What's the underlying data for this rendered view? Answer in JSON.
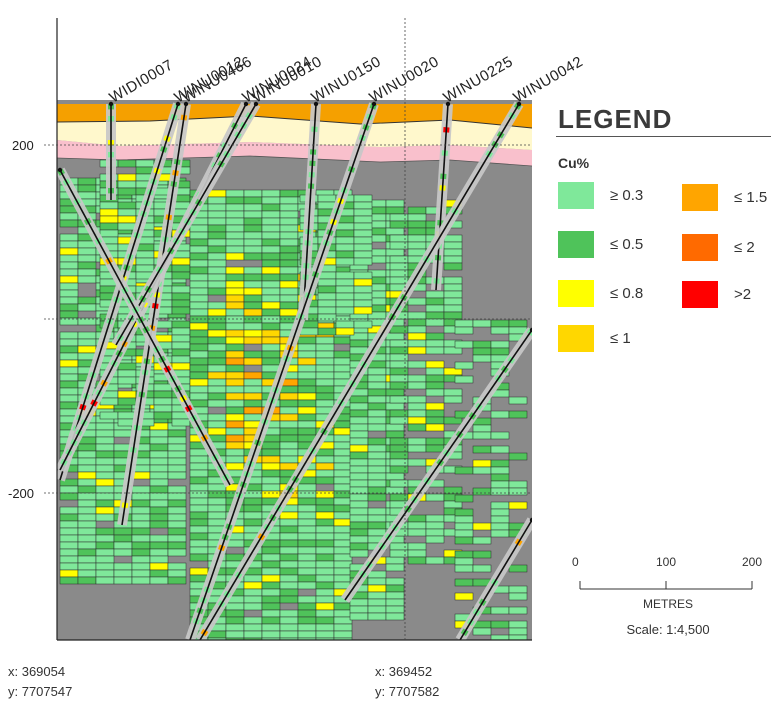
{
  "section": {
    "y_axis_labels": [
      "200",
      "-200"
    ],
    "drillholes": [
      {
        "name": "WIDI0007"
      },
      {
        "name": "WINU0012"
      },
      {
        "name": "WINU0466"
      },
      {
        "name": "WINU0024"
      },
      {
        "name": "WINU0010"
      },
      {
        "name": "WINU0150"
      },
      {
        "name": "WINU0020"
      },
      {
        "name": "WINU0225"
      },
      {
        "name": "WINU0042"
      }
    ]
  },
  "legend": {
    "title": "LEGEND",
    "subtitle": "Cu%",
    "items": [
      {
        "label": "≥ 0.3",
        "color": "#7fe89a"
      },
      {
        "label": "≤ 0.5",
        "color": "#4fc35a"
      },
      {
        "label": "≤ 0.8",
        "color": "#ffff00"
      },
      {
        "label": "≤ 1",
        "color": "#ffd700"
      },
      {
        "label": "≤ 1.5",
        "color": "#ffa500"
      },
      {
        "label": "≤ 2",
        "color": "#ff6a00"
      },
      {
        "label": ">2",
        "color": "#ff0000"
      }
    ]
  },
  "scale": {
    "ticks": [
      "0",
      "100",
      "200"
    ],
    "units": "METRES",
    "ratio": "Scale: 1:4,500"
  },
  "coordinates": {
    "left": {
      "x": "x: 369054",
      "y": "y: 7707547"
    },
    "right": {
      "x": "x: 369452",
      "y": "y: 7707582"
    }
  }
}
